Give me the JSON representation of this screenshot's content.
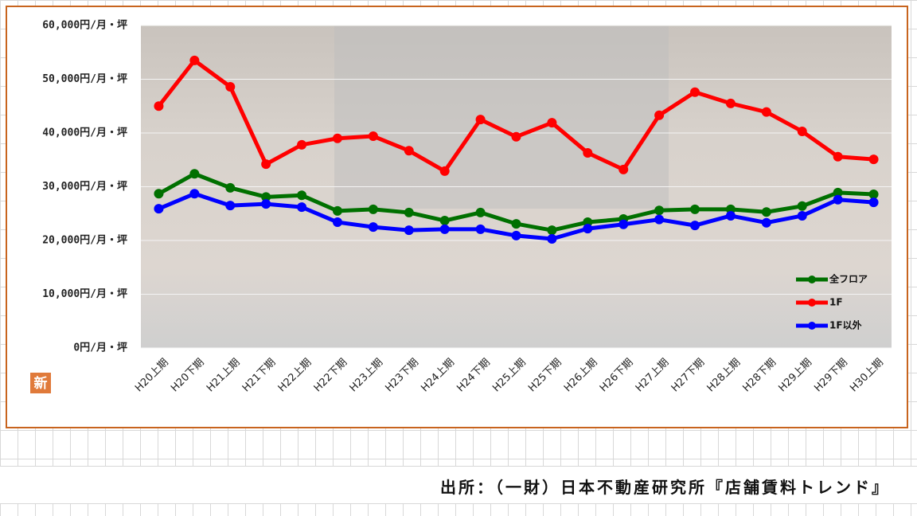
{
  "chart_data": {
    "type": "line",
    "categories": [
      "H20上期",
      "H20下期",
      "H21上期",
      "H21下期",
      "H22上期",
      "H22下期",
      "H23上期",
      "H23下期",
      "H24上期",
      "H24下期",
      "H25上期",
      "H25下期",
      "H26上期",
      "H26下期",
      "H27上期",
      "H27下期",
      "H28上期",
      "H28下期",
      "H29上期",
      "H29下期",
      "H30上期"
    ],
    "series": [
      {
        "name": "全フロア",
        "color": "#007000",
        "values": [
          28700,
          32400,
          29800,
          28100,
          28400,
          25500,
          25800,
          25200,
          23700,
          25200,
          23100,
          21900,
          23400,
          24000,
          25600,
          25800,
          25800,
          25300,
          26400,
          28900,
          28600
        ]
      },
      {
        "name": "1F",
        "color": "#ff0000",
        "values": [
          45000,
          53500,
          48600,
          34200,
          37800,
          39000,
          39400,
          36700,
          32900,
          42500,
          39300,
          41900,
          36300,
          33200,
          43300,
          47600,
          45500,
          43900,
          40300,
          35600,
          35100
        ]
      },
      {
        "name": "1F以外",
        "color": "#0000ff",
        "values": [
          25900,
          28700,
          26500,
          26800,
          26200,
          23400,
          22500,
          21900,
          22100,
          22100,
          20900,
          20300,
          22200,
          23000,
          23900,
          22800,
          24600,
          23300,
          24600,
          27600,
          27100
        ]
      }
    ],
    "ylim": [
      0,
      60000
    ],
    "yticks": [
      {
        "value": 0,
        "label": "0円/月・坪"
      },
      {
        "value": 10000,
        "label": "10,000円/月・坪"
      },
      {
        "value": 20000,
        "label": "20,000円/月・坪"
      },
      {
        "value": 30000,
        "label": "30,000円/月・坪"
      },
      {
        "value": 40000,
        "label": "40,000円/月・坪"
      },
      {
        "value": 50000,
        "label": "50,000円/月・坪"
      },
      {
        "value": 60000,
        "label": "60,000円/月・坪"
      }
    ],
    "grid": true,
    "legend": "lower-right"
  },
  "badge": "新",
  "source": "出所：（一財）日本不動産研究所『店舗賃料トレンド』"
}
